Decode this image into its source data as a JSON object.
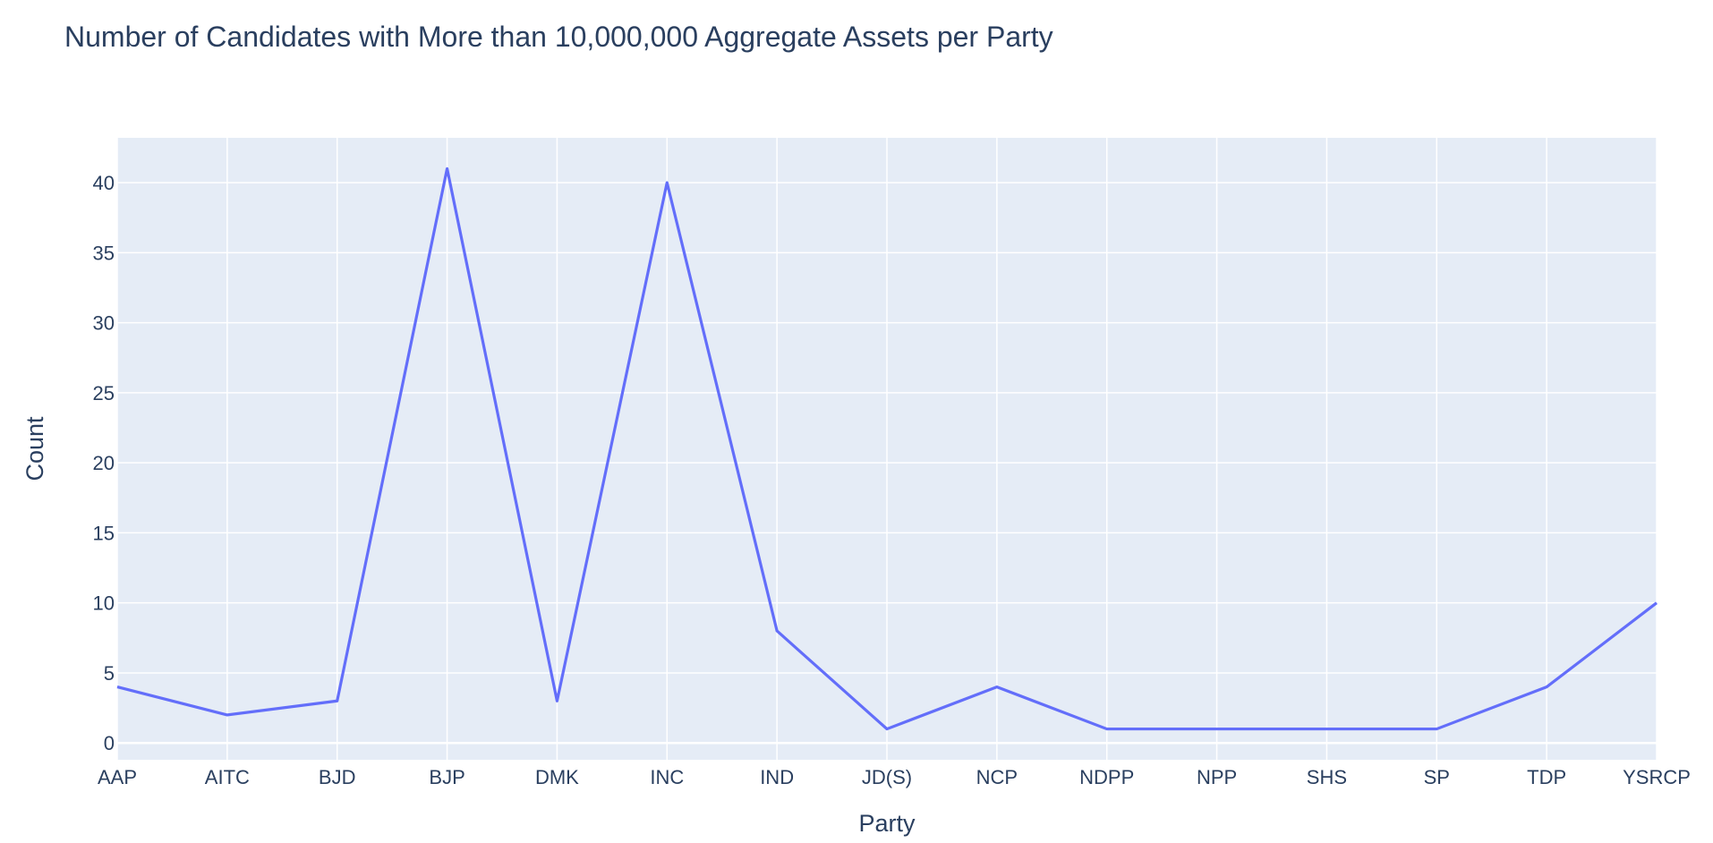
{
  "chart_data": {
    "type": "line",
    "title": "Number of Candidates with More than 10,000,000 Aggregate Assets per Party",
    "xlabel": "Party",
    "ylabel": "Count",
    "categories": [
      "AAP",
      "AITC",
      "BJD",
      "BJP",
      "DMK",
      "INC",
      "IND",
      "JD(S)",
      "NCP",
      "NDPP",
      "NPP",
      "SHS",
      "SP",
      "TDP",
      "YSRCP"
    ],
    "series": [
      {
        "values": [
          4,
          2,
          3,
          41,
          3,
          40,
          8,
          1,
          4,
          1,
          1,
          1,
          1,
          4,
          10
        ]
      }
    ],
    "ylim": [
      -1.2,
      43.2
    ],
    "yticks": [
      0,
      5,
      10,
      15,
      20,
      25,
      30,
      35,
      40
    ],
    "grid": true,
    "legend": "none",
    "colors": {
      "line": "#636efa",
      "plot_bg": "#e5ecf6",
      "grid": "#ffffff",
      "text": "#2a3f5f"
    }
  }
}
